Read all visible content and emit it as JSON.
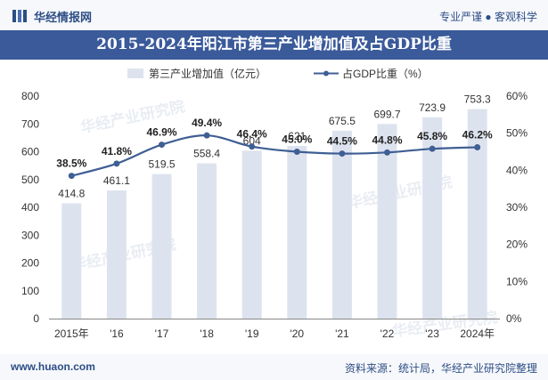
{
  "header": {
    "brand": "华经情报网",
    "tagline": "专业严谨 ● 客观科学"
  },
  "title": "2015-2024年阳江市第三产业增加值及占GDP比重",
  "footer": {
    "site": "www.huaon.com",
    "source": "资料来源：统计局，华经产业研究院整理"
  },
  "watermark": "华经产业研究院",
  "colors": {
    "bar": "#dde3ee",
    "line": "#3f5f94",
    "title_bg": "#3a5a9a"
  },
  "chart_data": {
    "type": "bar",
    "categories": [
      "2015年",
      "'16",
      "'17",
      "'18",
      "'19",
      "'20",
      "'21",
      "'22",
      "'23",
      "2024年"
    ],
    "series": [
      {
        "name": "第三产业增加值（亿元）",
        "type": "bar",
        "axis": "left",
        "values": [
          414.8,
          461.1,
          519.5,
          558.4,
          604,
          621,
          675.5,
          699.7,
          723.9,
          753.3
        ],
        "labels": [
          "414.8",
          "461.1",
          "519.5",
          "558.4",
          "604",
          "621",
          "675.5",
          "699.7",
          "723.9",
          "753.3"
        ]
      },
      {
        "name": "占GDP比重（%）",
        "type": "line",
        "axis": "right",
        "values": [
          38.5,
          41.8,
          46.9,
          49.4,
          46.4,
          45.0,
          44.5,
          44.8,
          45.8,
          46.2
        ],
        "labels": [
          "38.5%",
          "41.8%",
          "46.9%",
          "49.4%",
          "46.4%",
          "45.0%",
          "44.5%",
          "44.8%",
          "45.8%",
          "46.2%"
        ]
      }
    ],
    "y_left": {
      "min": 0,
      "max": 800,
      "ticks": [
        "0",
        "100",
        "200",
        "300",
        "400",
        "500",
        "600",
        "700",
        "800"
      ]
    },
    "y_right": {
      "min": 0,
      "max": 60,
      "ticks": [
        "0%",
        "10%",
        "20%",
        "30%",
        "40%",
        "50%",
        "60%"
      ]
    },
    "grid": false,
    "legend_position": "top"
  }
}
